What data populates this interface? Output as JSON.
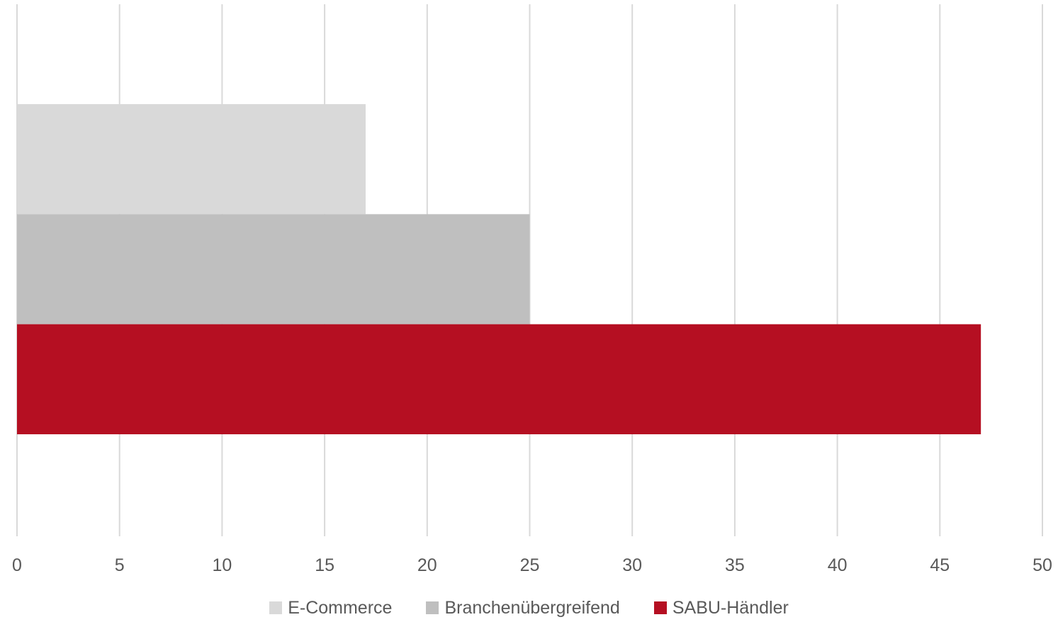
{
  "chart_data": {
    "type": "bar",
    "orientation": "horizontal",
    "title": "",
    "xlabel": "",
    "ylabel": "",
    "xlim": [
      0,
      50
    ],
    "x_ticks": [
      "0",
      "5",
      "10",
      "15",
      "20",
      "25",
      "30",
      "35",
      "40",
      "45",
      "50"
    ],
    "grid": "vertical",
    "legend_position": "bottom",
    "series": [
      {
        "name": "E-Commerce",
        "values": [
          17
        ],
        "color": "#d9d9d9"
      },
      {
        "name": "Branchenübergreifend",
        "values": [
          25
        ],
        "color": "#bfbfbf"
      },
      {
        "name": "SABU-Händler",
        "values": [
          47
        ],
        "color": "#b50f22"
      }
    ]
  }
}
